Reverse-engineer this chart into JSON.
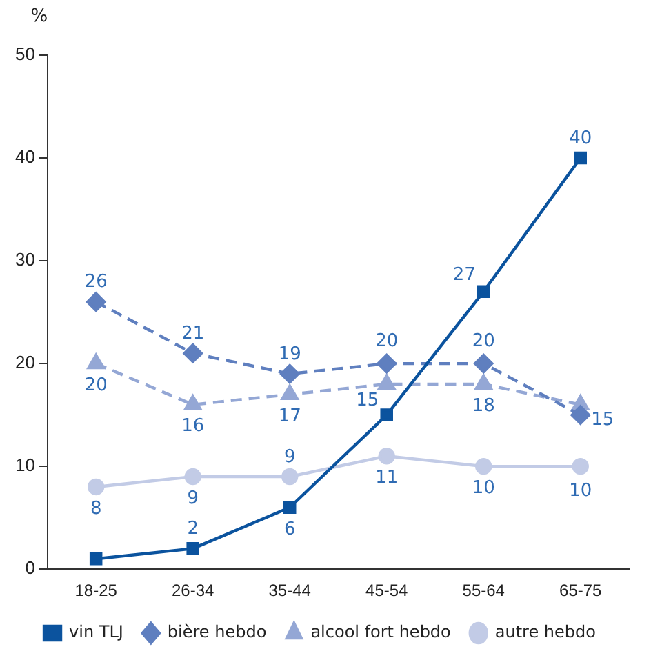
{
  "chart_data": {
    "type": "line",
    "ylabel": "%",
    "categories": [
      "18-25",
      "26-34",
      "35-44",
      "45-54",
      "55-64",
      "65-75"
    ],
    "ylim": [
      0,
      50
    ],
    "yticks": [
      0,
      10,
      20,
      30,
      40,
      50
    ],
    "grid": false,
    "legend": "bottom",
    "series": [
      {
        "name": "vin TLJ",
        "color": "#0b539e",
        "values": [
          1,
          2,
          6,
          15,
          27,
          40
        ],
        "value_labels": [
          null,
          "2",
          "6",
          "15",
          "27",
          "40"
        ],
        "marker": "square",
        "line_style": "solid"
      },
      {
        "name": "bière hebdo",
        "color": "#5f7fbf",
        "values": [
          26,
          21,
          19,
          20,
          20,
          15
        ],
        "value_labels": [
          "26",
          "21",
          "19",
          "20",
          "20",
          "15"
        ],
        "marker": "diamond",
        "line_style": "dashed"
      },
      {
        "name": "alcool fort hebdo",
        "color": "#94a7d5",
        "values": [
          20,
          16,
          17,
          18,
          18,
          16
        ],
        "value_labels": [
          "20",
          "16",
          "17",
          null,
          "18",
          null
        ],
        "marker": "triangle",
        "line_style": "dashed"
      },
      {
        "name": "autre hebdo",
        "color": "#c2cbe6",
        "values": [
          8,
          9,
          9,
          11,
          10,
          10
        ],
        "value_labels": [
          "8",
          "9",
          "9",
          "11",
          "10",
          "10"
        ],
        "marker": "circle",
        "line_style": "solid"
      }
    ]
  }
}
